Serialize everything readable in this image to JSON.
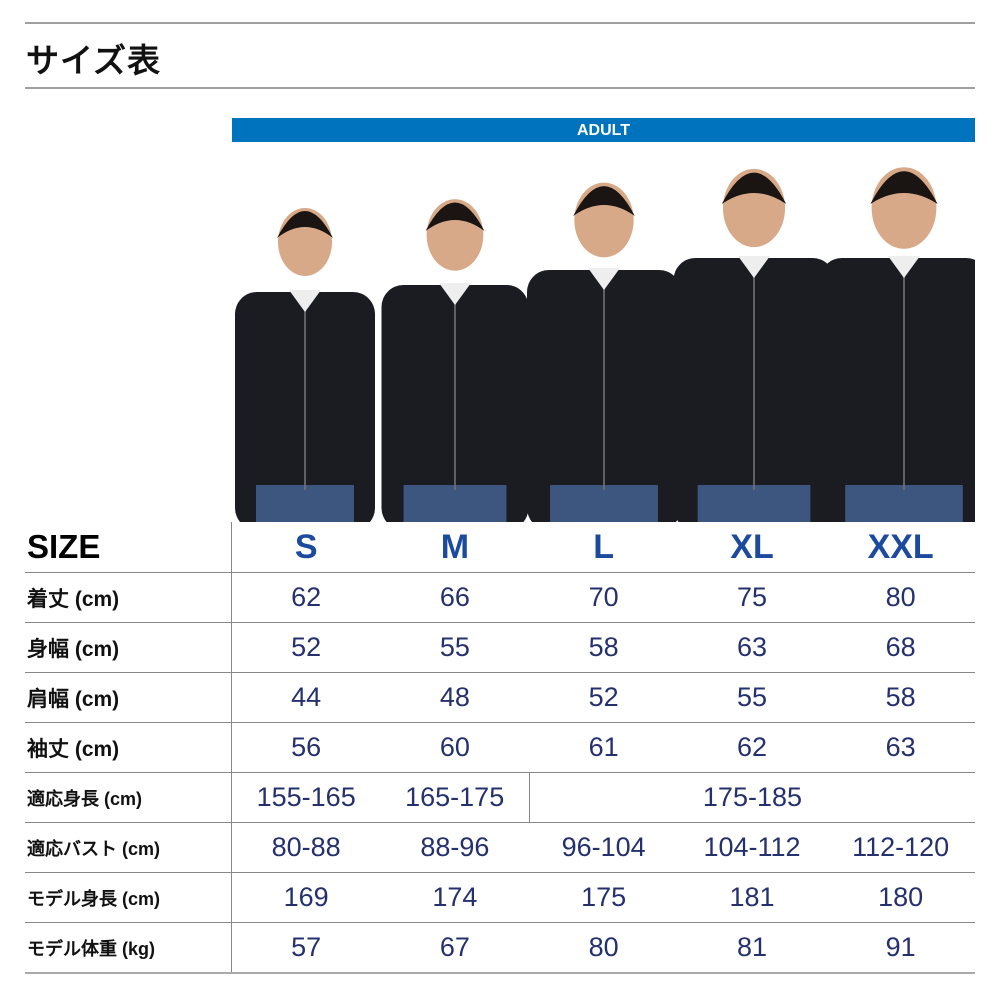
{
  "title": "サイズ表",
  "band_label": "ADULT",
  "colors": {
    "band": "#0073be",
    "size_heading": "#1c4a9e",
    "values": "#25306e"
  },
  "table": {
    "size_label": "SIZE",
    "sizes": [
      "S",
      "M",
      "L",
      "XL",
      "XXL"
    ],
    "rows": [
      {
        "label": "着丈 (cm)",
        "values": [
          "62",
          "66",
          "70",
          "75",
          "80"
        ]
      },
      {
        "label": "身幅 (cm)",
        "values": [
          "52",
          "55",
          "58",
          "63",
          "68"
        ]
      },
      {
        "label": "肩幅 (cm)",
        "values": [
          "44",
          "48",
          "52",
          "55",
          "58"
        ]
      },
      {
        "label": "袖丈 (cm)",
        "values": [
          "56",
          "60",
          "61",
          "62",
          "63"
        ]
      }
    ],
    "fit_height": {
      "label": "適応身長 (cm)",
      "values": [
        "155-165",
        "165-175",
        "175-185"
      ]
    },
    "rows2": [
      {
        "label": "適応バスト (cm)",
        "values": [
          "80-88",
          "88-96",
          "96-104",
          "104-112",
          "112-120"
        ]
      },
      {
        "label": "モデル身長 (cm)",
        "values": [
          "169",
          "174",
          "175",
          "181",
          "180"
        ]
      },
      {
        "label": "モデル体重 (kg)",
        "values": [
          "57",
          "67",
          "80",
          "81",
          "91"
        ]
      }
    ]
  }
}
